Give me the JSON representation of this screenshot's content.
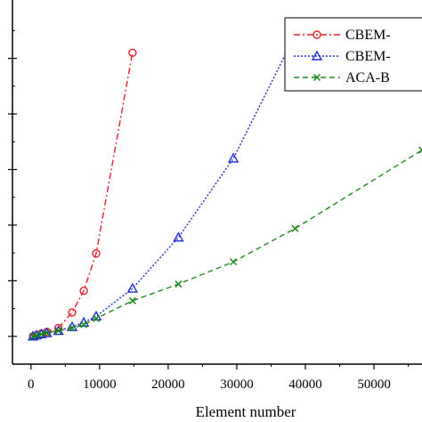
{
  "chart_data": {
    "type": "line",
    "xlabel": "Element number",
    "ylabel": "",
    "xlim": [
      -2700,
      57000
    ],
    "ylim": [
      -0.5,
      6.05
    ],
    "x_ticks": [
      0,
      10000,
      20000,
      30000,
      40000,
      50000
    ],
    "x_tick_labels": [
      "0",
      "10000",
      "20000",
      "30000",
      "40000",
      "50000"
    ],
    "y_ticks": [
      0,
      1,
      2,
      3,
      4,
      5
    ],
    "grid": false,
    "legend_position": "top-right",
    "series": [
      {
        "name": "CBEM-",
        "color": "#e8202a",
        "line_style": "dash-dot",
        "marker": "circle",
        "x": [
          300,
          800,
          1500,
          2300,
          4000,
          6000,
          7700,
          9500,
          14800
        ],
        "y": [
          0.0,
          0.02,
          0.05,
          0.08,
          0.15,
          0.43,
          0.82,
          1.49,
          5.1
        ]
      },
      {
        "name": "CBEM-",
        "color": "#1c2bd6",
        "line_style": "dotted",
        "marker": "triangle",
        "x": [
          300,
          800,
          1500,
          2300,
          4000,
          6000,
          7700,
          9500,
          14800,
          21500,
          29500,
          38500
        ],
        "y": [
          0.0,
          0.02,
          0.04,
          0.06,
          0.1,
          0.17,
          0.25,
          0.36,
          0.86,
          1.78,
          3.2,
          5.42
        ]
      },
      {
        "name": "ACA-B",
        "color": "#1b8a1b",
        "line_style": "dashed",
        "marker": "x",
        "x": [
          300,
          800,
          1500,
          2300,
          4000,
          6000,
          7700,
          9500,
          14800,
          21500,
          29500,
          38500,
          57000
        ],
        "y": [
          0.0,
          0.02,
          0.04,
          0.06,
          0.1,
          0.15,
          0.21,
          0.32,
          0.64,
          0.94,
          1.34,
          1.94,
          3.35
        ]
      }
    ]
  }
}
